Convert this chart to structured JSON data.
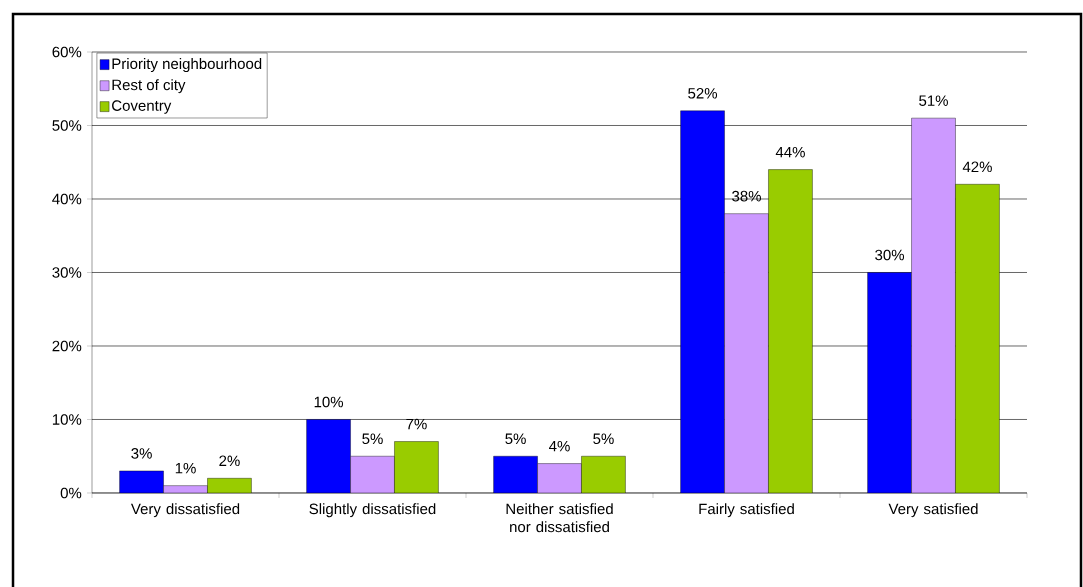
{
  "chart_data": {
    "type": "bar",
    "categories": [
      "Very dissatisfied",
      "Slightly dissatisfied",
      "Neither satisfied nor dissatisfied",
      "Fairly satisfied",
      "Very satisfied"
    ],
    "series": [
      {
        "name": "Priority neighbourhood",
        "color": "#0000ff",
        "values": [
          3,
          10,
          5,
          52,
          30
        ],
        "value_labels": [
          "3%",
          "10%",
          "5%",
          "52%",
          "30%"
        ]
      },
      {
        "name": "Rest of city",
        "color": "#cc99ff",
        "values": [
          1,
          5,
          4,
          38,
          51
        ],
        "value_labels": [
          "1%",
          "5%",
          "4%",
          "38%",
          "51%"
        ]
      },
      {
        "name": "Coventry",
        "color": "#99cc00",
        "values": [
          2,
          7,
          5,
          44,
          42
        ],
        "value_labels": [
          "2%",
          "7%",
          "5%",
          "44%",
          "42%"
        ]
      }
    ],
    "ylim": [
      0,
      60
    ],
    "yticks": [
      {
        "value": 0,
        "label": "0%"
      },
      {
        "value": 10,
        "label": "10%"
      },
      {
        "value": 20,
        "label": "20%"
      },
      {
        "value": 30,
        "label": "30%"
      },
      {
        "value": 40,
        "label": "40%"
      },
      {
        "value": 50,
        "label": "50%"
      },
      {
        "value": 60,
        "label": "60%"
      }
    ],
    "grid": "y",
    "legend": "top left"
  }
}
